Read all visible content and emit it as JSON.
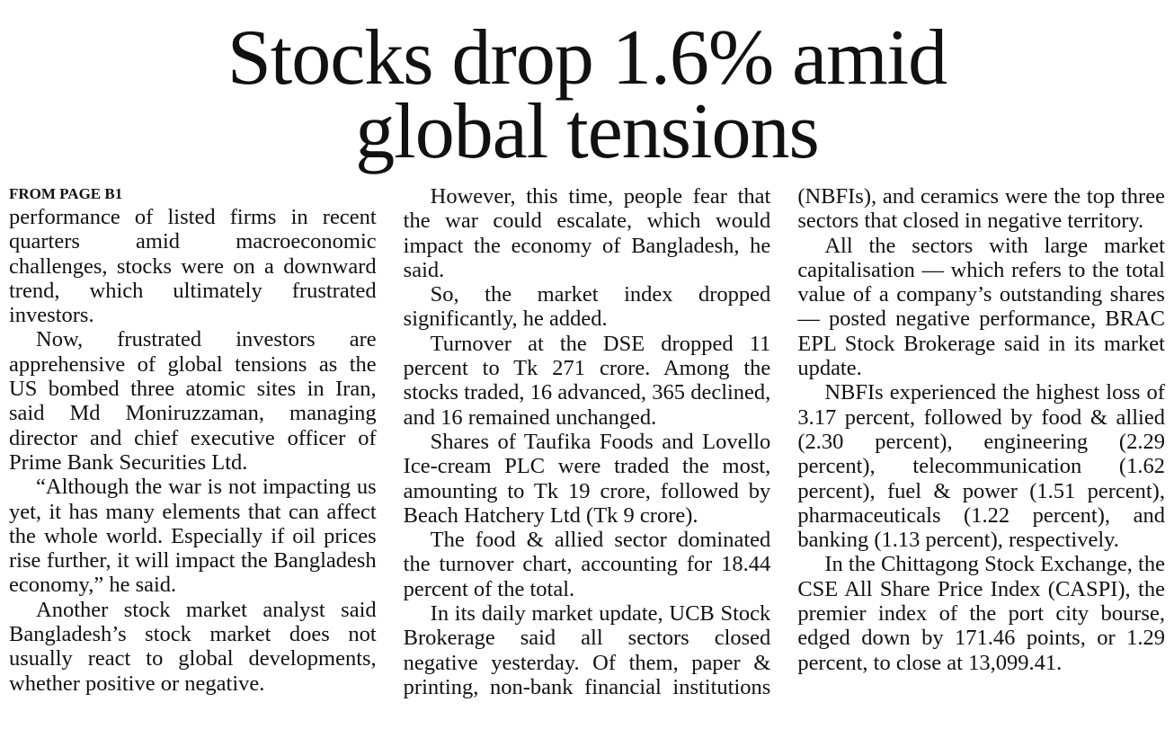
{
  "article": {
    "headline": "Stocks drop 1.6% amid global tensions",
    "kicker": "FROM PAGE B1",
    "paragraphs": [
      "performance of listed firms in recent quarters amid macroeconomic challenges, stocks were on a downward trend, which ultimately frustrated investors.",
      "Now, frustrated investors are apprehensive of global tensions as the US bombed three atomic sites in Iran, said Md Moniruzzaman, managing director and chief executive officer of Prime Bank Securities Ltd.",
      "“Although the war is not impacting us yet, it has many elements that can affect the whole world. Especially if oil prices rise further, it will impact the Bangladesh economy,” he said.",
      "Another stock market analyst said Bangladesh’s stock market does not usually react to global developments, whether positive or negative.",
      "However, this time, people fear that the war could escalate, which would impact the economy of Bangladesh, he said.",
      "So, the market index dropped significantly, he added.",
      "Turnover at the DSE dropped 11 percent to Tk 271 crore. Among the stocks traded, 16 advanced, 365 declined, and 16 remained unchanged.",
      "Shares of Taufika Foods and Lovello Ice-cream PLC were traded the most, amounting to Tk 19 crore, followed by Beach Hatchery Ltd (Tk 9 crore).",
      "The food & allied sector dominated the turnover chart, accounting for 18.44 percent of the total.",
      "In its daily market update, UCB Stock Brokerage said all sectors closed negative yesterday. Of them, paper & printing, non-bank financial institutions (NBFIs), and ceramics were the top three sectors that closed in negative territory.",
      "All the sectors with large market capitalisation — which refers to the total value of a company’s outstanding shares — posted negative performance, BRAC EPL Stock Brokerage said in its market update.",
      "NBFIs experienced the highest loss of 3.17 percent, followed by food & allied (2.30 percent), engineering (2.29 percent), telecommunication (1.62 percent), fuel & power (1.51 percent), pharmaceuticals (1.22 percent), and banking (1.13 percent), respectively.",
      "In the Chittagong Stock Exchange, the CSE All Share Price Index (CASPI), the premier index of the port city bourse, edged down by 171.46 points, or 1.29 percent, to close at 13,099.41."
    ]
  }
}
